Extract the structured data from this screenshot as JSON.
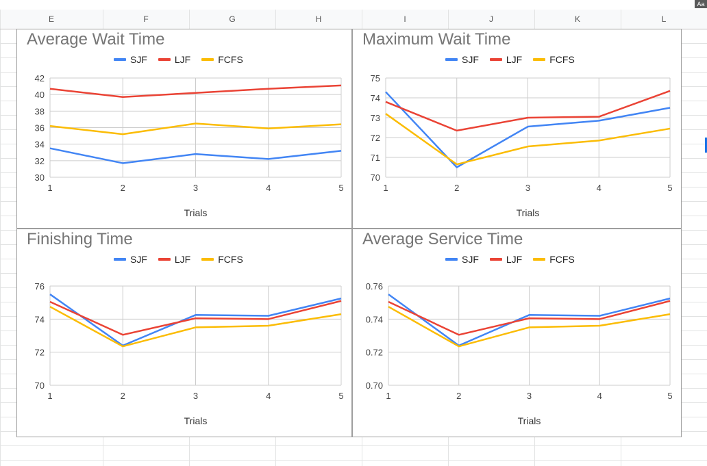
{
  "sheet": {
    "columns": [
      "E",
      "F",
      "G",
      "H",
      "I",
      "J",
      "K",
      "L"
    ],
    "corner_label": "Aa",
    "accent": "#1a73e8"
  },
  "colors": {
    "SJF": "#4285f4",
    "LJF": "#ea4335",
    "FCFS": "#fbbc04",
    "title": "#757575",
    "grid": "#cccccc",
    "border": "#9e9e9e"
  },
  "chart_data": [
    {
      "type": "line",
      "title": "Average Wait Time",
      "xlabel": "Trials",
      "ylabel": "",
      "x": [
        1,
        2,
        3,
        4,
        5
      ],
      "ylim": [
        30,
        42
      ],
      "yticks": [
        "30",
        "32",
        "34",
        "36",
        "38",
        "40",
        "42"
      ],
      "xticks": [
        "1",
        "2",
        "3",
        "4",
        "5"
      ],
      "legend": "top",
      "grid": true,
      "series": [
        {
          "name": "SJF",
          "values": [
            33.5,
            31.7,
            32.8,
            32.2,
            33.2
          ]
        },
        {
          "name": "LJF",
          "values": [
            40.7,
            39.7,
            40.2,
            40.7,
            41.1
          ]
        },
        {
          "name": "FCFS",
          "values": [
            36.2,
            35.2,
            36.5,
            35.9,
            36.4
          ]
        }
      ]
    },
    {
      "type": "line",
      "title": "Maximum Wait Time",
      "xlabel": "Trials",
      "ylabel": "",
      "x": [
        1,
        2,
        3,
        4,
        5
      ],
      "ylim": [
        70,
        75
      ],
      "yticks": [
        "70",
        "71",
        "72",
        "73",
        "74",
        "75"
      ],
      "xticks": [
        "1",
        "2",
        "3",
        "4",
        "5"
      ],
      "legend": "top",
      "grid": true,
      "series": [
        {
          "name": "SJF",
          "values": [
            74.3,
            70.5,
            72.55,
            72.85,
            73.5
          ]
        },
        {
          "name": "LJF",
          "values": [
            73.8,
            72.35,
            73.0,
            73.05,
            74.35
          ]
        },
        {
          "name": "FCFS",
          "values": [
            73.2,
            70.65,
            71.55,
            71.85,
            72.45
          ]
        }
      ]
    },
    {
      "type": "line",
      "title": "Finishing Time",
      "xlabel": "Trials",
      "ylabel": "",
      "x": [
        1,
        2,
        3,
        4,
        5
      ],
      "ylim": [
        70,
        76
      ],
      "yticks": [
        "70",
        "72",
        "74",
        "76"
      ],
      "xticks": [
        "1",
        "2",
        "3",
        "4",
        "5"
      ],
      "legend": "top",
      "grid": true,
      "series": [
        {
          "name": "SJF",
          "values": [
            75.5,
            72.4,
            74.25,
            74.2,
            75.25
          ]
        },
        {
          "name": "LJF",
          "values": [
            75.05,
            73.05,
            74.05,
            74.0,
            75.1
          ]
        },
        {
          "name": "FCFS",
          "values": [
            74.75,
            72.35,
            73.5,
            73.6,
            74.3
          ]
        }
      ]
    },
    {
      "type": "line",
      "title": "Average Service Time",
      "xlabel": "Trials",
      "ylabel": "",
      "x": [
        1,
        2,
        3,
        4,
        5
      ],
      "ylim": [
        0.7,
        0.76
      ],
      "yticks": [
        "0.70",
        "0.72",
        "0.74",
        "0.76"
      ],
      "xticks": [
        "1",
        "2",
        "3",
        "4",
        "5"
      ],
      "legend": "top",
      "grid": true,
      "series": [
        {
          "name": "SJF",
          "values": [
            0.755,
            0.724,
            0.7425,
            0.742,
            0.7525
          ]
        },
        {
          "name": "LJF",
          "values": [
            0.7505,
            0.7305,
            0.7405,
            0.74,
            0.751
          ]
        },
        {
          "name": "FCFS",
          "values": [
            0.7475,
            0.7235,
            0.735,
            0.736,
            0.743
          ]
        }
      ]
    }
  ]
}
